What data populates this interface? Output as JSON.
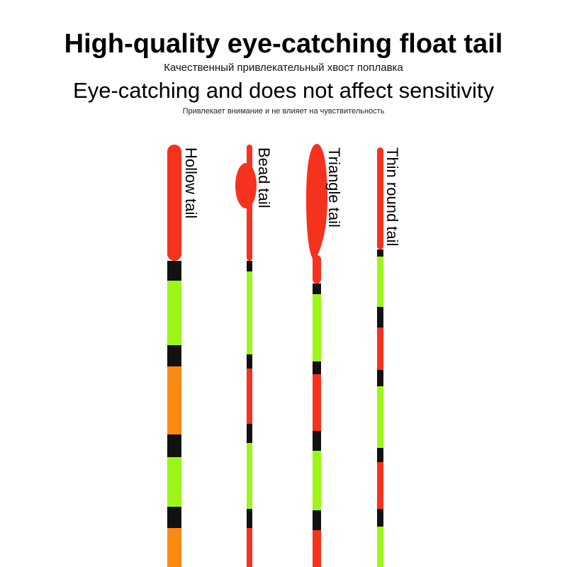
{
  "header": {
    "title": "High-quality eye-catching float tail",
    "title_ru": "Качественный привлекательный хвост поплавка",
    "tagline": "Eye-catching and does not affect sensitivity",
    "tagline_ru": "Привлекает внимание и не влияет на чувствительность"
  },
  "floats": [
    {
      "label": "Hollow tail"
    },
    {
      "label": "Bead tail"
    },
    {
      "label": "Triangle tail"
    },
    {
      "label": "Thin round tail"
    }
  ]
}
